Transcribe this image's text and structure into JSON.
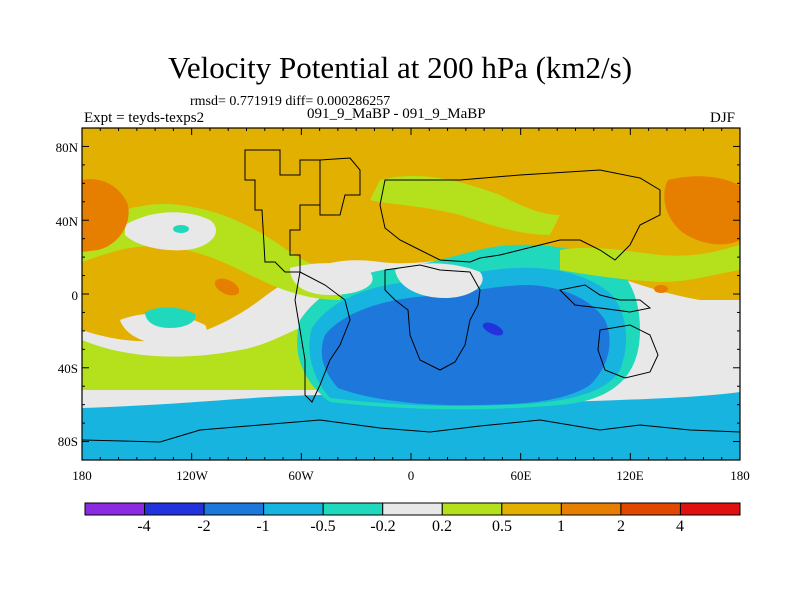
{
  "title": "Velocity Potential at 200 hPa (km2/s)",
  "stats": "rmsd= 0.771919 diff= 0.000286257",
  "left_label": "Expt = teyds-texps2",
  "center_label": "091_9_MaBP - 091_9_MaBP",
  "right_label": "DJF",
  "map": {
    "lat_ticks": [
      "80N",
      "40N",
      "0",
      "40S",
      "80S"
    ],
    "lon_ticks": [
      "180",
      "120W",
      "60W",
      "0",
      "60E",
      "120E",
      "180"
    ]
  },
  "colorbar": {
    "labels": [
      "-4",
      "-2",
      "-1",
      "-0.5",
      "-0.2",
      "0.2",
      "0.5",
      "1",
      "2",
      "4"
    ],
    "colors": [
      "#8a2be2",
      "#2233dd",
      "#1e78dc",
      "#18b4e0",
      "#20d8bc",
      "#e8e8e8",
      "#b4e01c",
      "#e2b000",
      "#e67e00",
      "#e04800",
      "#e01010"
    ]
  }
}
